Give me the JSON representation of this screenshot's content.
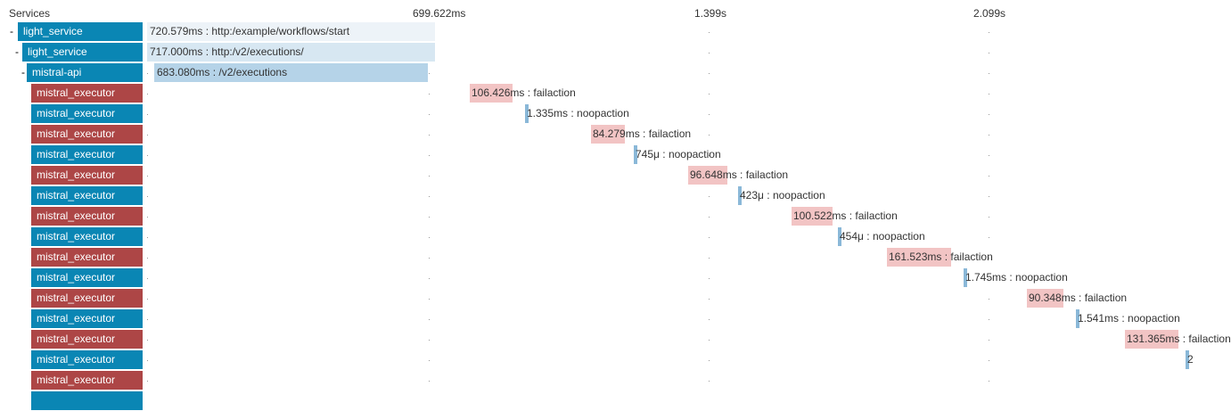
{
  "header": {
    "services_label": "Services",
    "ticks": [
      "699.622ms",
      "1.399s",
      "2.099s"
    ]
  },
  "colors": {
    "service_blue": "#0a86b4",
    "service_red": "#ad4646",
    "span_light": "#edf3f8",
    "span_mid": "#d7e7f2",
    "span_dark": "#b5d3e8",
    "span_fail": "#f2c4c4",
    "span_ok": "#8ab8d8"
  },
  "rows": [
    {
      "collapse": "-",
      "service": "light_service",
      "status": "ok",
      "span_label": "720.579ms : http:/example/workflows/start"
    },
    {
      "collapse": "-",
      "service": "light_service",
      "status": "ok",
      "span_label": "717.000ms : http:/v2/executions/"
    },
    {
      "collapse": "-",
      "service": "mistral-api",
      "status": "ok",
      "span_label": "683.080ms : /v2/executions"
    },
    {
      "collapse": "",
      "service": "mistral_executor",
      "status": "error",
      "span_label": "106.426ms : failaction"
    },
    {
      "collapse": "",
      "service": "mistral_executor",
      "status": "ok",
      "span_label": "1.335ms : noopaction"
    },
    {
      "collapse": "",
      "service": "mistral_executor",
      "status": "error",
      "span_label": "84.279ms : failaction"
    },
    {
      "collapse": "",
      "service": "mistral_executor",
      "status": "ok",
      "span_label": "745μ : noopaction"
    },
    {
      "collapse": "",
      "service": "mistral_executor",
      "status": "error",
      "span_label": "96.648ms : failaction"
    },
    {
      "collapse": "",
      "service": "mistral_executor",
      "status": "ok",
      "span_label": "423μ : noopaction"
    },
    {
      "collapse": "",
      "service": "mistral_executor",
      "status": "error",
      "span_label": "100.522ms : failaction"
    },
    {
      "collapse": "",
      "service": "mistral_executor",
      "status": "ok",
      "span_label": "454μ : noopaction"
    },
    {
      "collapse": "",
      "service": "mistral_executor",
      "status": "error",
      "span_label": "161.523ms : failaction"
    },
    {
      "collapse": "",
      "service": "mistral_executor",
      "status": "ok",
      "span_label": "1.745ms : noopaction"
    },
    {
      "collapse": "",
      "service": "mistral_executor",
      "status": "error",
      "span_label": "90.348ms : failaction"
    },
    {
      "collapse": "",
      "service": "mistral_executor",
      "status": "ok",
      "span_label": "1.541ms : noopaction"
    },
    {
      "collapse": "",
      "service": "mistral_executor",
      "status": "error",
      "span_label": "131.365ms : failaction"
    },
    {
      "collapse": "",
      "service": "mistral_executor",
      "status": "ok",
      "span_label": "2"
    },
    {
      "collapse": "",
      "service": "mistral_executor",
      "status": "error",
      "span_label": ""
    },
    {
      "collapse": "",
      "service": "",
      "status": "ok",
      "span_label": ""
    }
  ]
}
